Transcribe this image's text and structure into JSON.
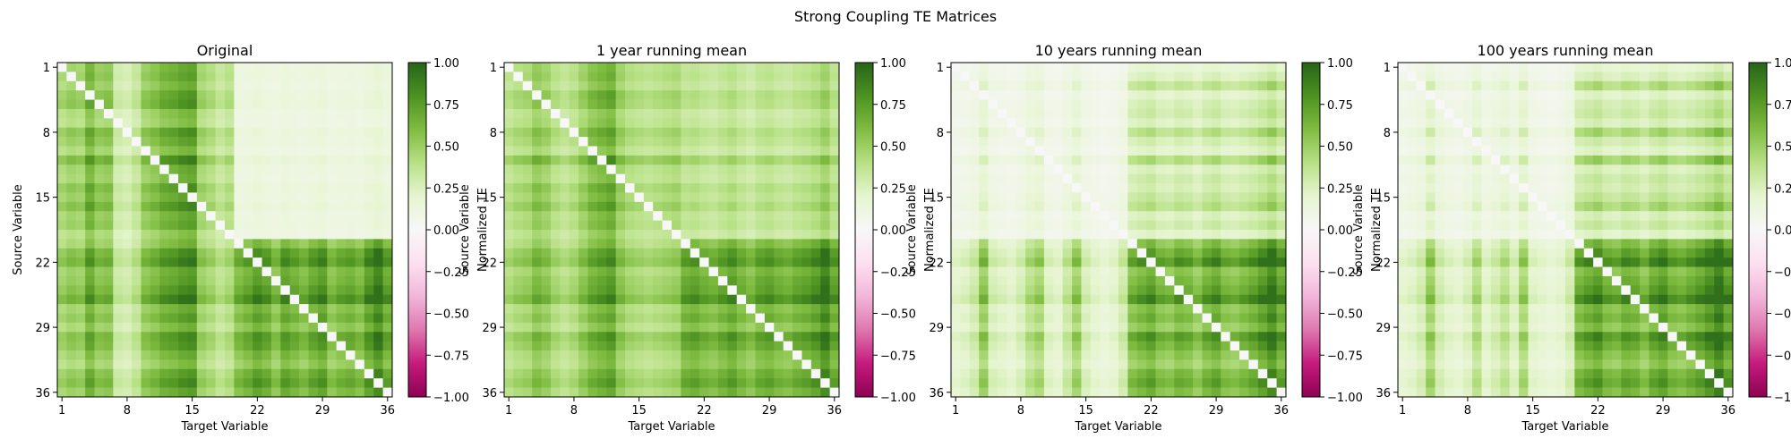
{
  "figure": {
    "title": "Strong Coupling TE Matrices"
  },
  "colormap": {
    "name": "PiYG",
    "stops": [
      "#8e0152",
      "#c51b7d",
      "#de77ae",
      "#f1b6da",
      "#fde0ef",
      "#f7f7f7",
      "#e6f5d0",
      "#b8e186",
      "#7fbc41",
      "#4d9221",
      "#276419"
    ]
  },
  "colorbar": {
    "label": "Normalized TE",
    "range": [
      -1.0,
      1.0
    ],
    "ticks": [
      "1.00",
      "0.75",
      "0.50",
      "0.25",
      "0.00",
      "−0.25",
      "−0.50",
      "−0.75",
      "−1.00"
    ]
  },
  "chart_data": [
    {
      "type": "heatmap",
      "title": "Original",
      "xlabel": "Target Variable",
      "ylabel": "Source Variable",
      "n": 36,
      "tick_labels": [
        "1",
        "8",
        "15",
        "22",
        "29",
        "36"
      ],
      "zlim": [
        -1,
        1
      ],
      "blocks": {
        "ul": 0.5,
        "ur": 0.12,
        "ll": 0.52,
        "lr": 0.62
      },
      "row_factors": [
        0.95,
        1.0,
        0.9,
        1.05,
        1.1,
        0.85,
        0.8,
        1.1,
        1.0,
        0.85,
        1.2,
        0.95,
        0.9,
        1.1,
        1.0,
        1.15,
        0.95,
        1.0,
        0.8,
        0.85,
        1.1,
        1.2,
        0.95,
        1.0,
        1.1,
        1.25,
        0.9,
        1.0,
        0.85,
        1.1,
        1.05,
        0.9,
        0.8,
        1.0,
        1.1,
        0.95
      ],
      "col_factors": [
        0.9,
        1.0,
        0.95,
        1.3,
        1.05,
        1.1,
        0.6,
        0.55,
        0.7,
        1.05,
        1.15,
        1.3,
        1.35,
        1.45,
        1.5,
        0.95,
        0.85,
        0.7,
        0.8,
        0.95,
        1.05,
        1.2,
        1.1,
        0.9,
        1.15,
        1.05,
        0.95,
        1.1,
        1.2,
        0.9,
        1.0,
        1.05,
        0.95,
        1.2,
        1.4,
        1.1
      ],
      "diagonal": 0.0
    },
    {
      "type": "heatmap",
      "title": "1 year running mean",
      "xlabel": "Target Variable",
      "ylabel": "Source Variable",
      "n": 36,
      "tick_labels": [
        "1",
        "8",
        "15",
        "22",
        "29",
        "36"
      ],
      "zlim": [
        -1,
        1
      ],
      "blocks": {
        "ul": 0.45,
        "ur": 0.35,
        "ll": 0.48,
        "lr": 0.62
      },
      "row_factors": [
        0.95,
        1.0,
        0.9,
        1.1,
        1.05,
        0.85,
        0.9,
        1.1,
        1.0,
        0.85,
        1.25,
        0.95,
        0.9,
        1.1,
        1.0,
        1.15,
        0.95,
        1.0,
        0.85,
        0.9,
        1.1,
        1.2,
        0.95,
        1.05,
        1.1,
        1.25,
        0.9,
        1.0,
        0.85,
        1.15,
        1.05,
        0.9,
        0.85,
        1.0,
        1.1,
        0.95
      ],
      "col_factors": [
        0.85,
        0.95,
        1.0,
        1.2,
        1.1,
        0.9,
        0.8,
        0.9,
        1.1,
        1.3,
        1.4,
        1.5,
        1.1,
        0.95,
        0.9,
        0.85,
        0.9,
        0.95,
        1.0,
        1.05,
        1.1,
        1.0,
        0.95,
        1.05,
        1.15,
        1.0,
        0.9,
        1.05,
        1.1,
        1.0,
        0.95,
        1.05,
        1.1,
        1.2,
        1.4,
        1.1
      ],
      "diagonal": 0.0
    },
    {
      "type": "heatmap",
      "title": "10 years running mean",
      "xlabel": "Target Variable",
      "ylabel": "Source Variable",
      "n": 36,
      "tick_labels": [
        "1",
        "8",
        "15",
        "22",
        "29",
        "36"
      ],
      "zlim": [
        -1,
        1
      ],
      "blocks": {
        "ul": 0.12,
        "ur": 0.28,
        "ll": 0.32,
        "lr": 0.58
      },
      "row_factors": [
        0.6,
        0.8,
        1.2,
        0.7,
        0.9,
        1.0,
        0.8,
        1.3,
        0.9,
        0.7,
        1.4,
        0.8,
        1.0,
        0.9,
        1.1,
        1.3,
        0.8,
        1.0,
        0.7,
        0.9,
        1.1,
        1.3,
        0.9,
        1.0,
        1.1,
        1.3,
        0.9,
        1.0,
        0.85,
        1.2,
        1.05,
        0.9,
        0.8,
        1.0,
        1.1,
        0.95
      ],
      "col_factors": [
        0.6,
        0.7,
        0.9,
        1.6,
        0.8,
        0.7,
        0.6,
        0.8,
        1.2,
        1.4,
        0.7,
        0.6,
        1.0,
        1.5,
        0.8,
        0.6,
        0.5,
        0.6,
        0.9,
        1.0,
        1.1,
        1.2,
        1.0,
        0.95,
        1.1,
        1.05,
        0.9,
        1.1,
        1.2,
        1.0,
        0.95,
        1.05,
        1.15,
        1.3,
        1.5,
        1.2
      ],
      "diagonal": 0.0
    },
    {
      "type": "heatmap",
      "title": "100 years running mean",
      "xlabel": "Target Variable",
      "ylabel": "Source Variable",
      "n": 36,
      "tick_labels": [
        "1",
        "8",
        "15",
        "22",
        "29",
        "36"
      ],
      "zlim": [
        -1,
        1
      ],
      "blocks": {
        "ul": 0.14,
        "ur": 0.3,
        "ll": 0.3,
        "lr": 0.62
      },
      "row_factors": [
        0.6,
        0.8,
        1.3,
        0.7,
        0.9,
        1.0,
        0.8,
        1.4,
        0.9,
        0.7,
        1.5,
        0.8,
        1.0,
        0.9,
        1.1,
        1.4,
        0.8,
        1.0,
        0.7,
        0.9,
        1.1,
        1.3,
        0.9,
        1.0,
        1.1,
        1.3,
        0.9,
        1.0,
        0.85,
        1.2,
        1.05,
        0.9,
        0.8,
        1.0,
        1.1,
        0.95
      ],
      "col_factors": [
        0.6,
        0.7,
        0.9,
        1.6,
        0.9,
        0.7,
        0.6,
        0.8,
        1.3,
        0.7,
        0.9,
        1.2,
        0.8,
        1.5,
        0.7,
        0.6,
        0.5,
        0.6,
        0.9,
        1.0,
        1.1,
        1.2,
        1.0,
        0.95,
        1.1,
        1.05,
        0.9,
        1.1,
        1.2,
        1.0,
        0.95,
        1.05,
        1.15,
        1.3,
        1.5,
        1.2
      ],
      "diagonal": 0.0
    }
  ]
}
